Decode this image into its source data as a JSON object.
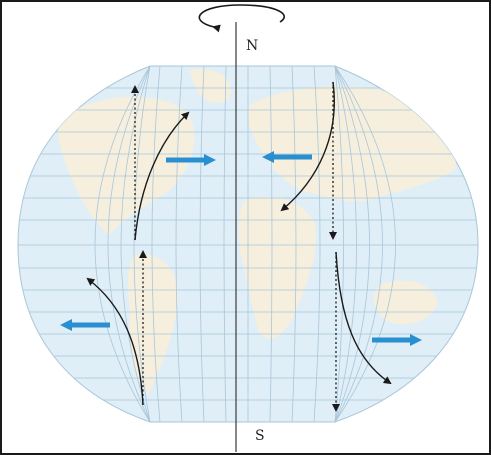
{
  "diagram": {
    "north_label": "N",
    "south_label": "S",
    "colors": {
      "ocean": "#dfeef7",
      "land": "#f6efde",
      "grid": "#a9c6d9",
      "axis": "#3a3a3a",
      "arrow_black": "#1a1a1a",
      "arrow_blue": "#2a8fd1",
      "frame": "#1a1a1a"
    }
  }
}
